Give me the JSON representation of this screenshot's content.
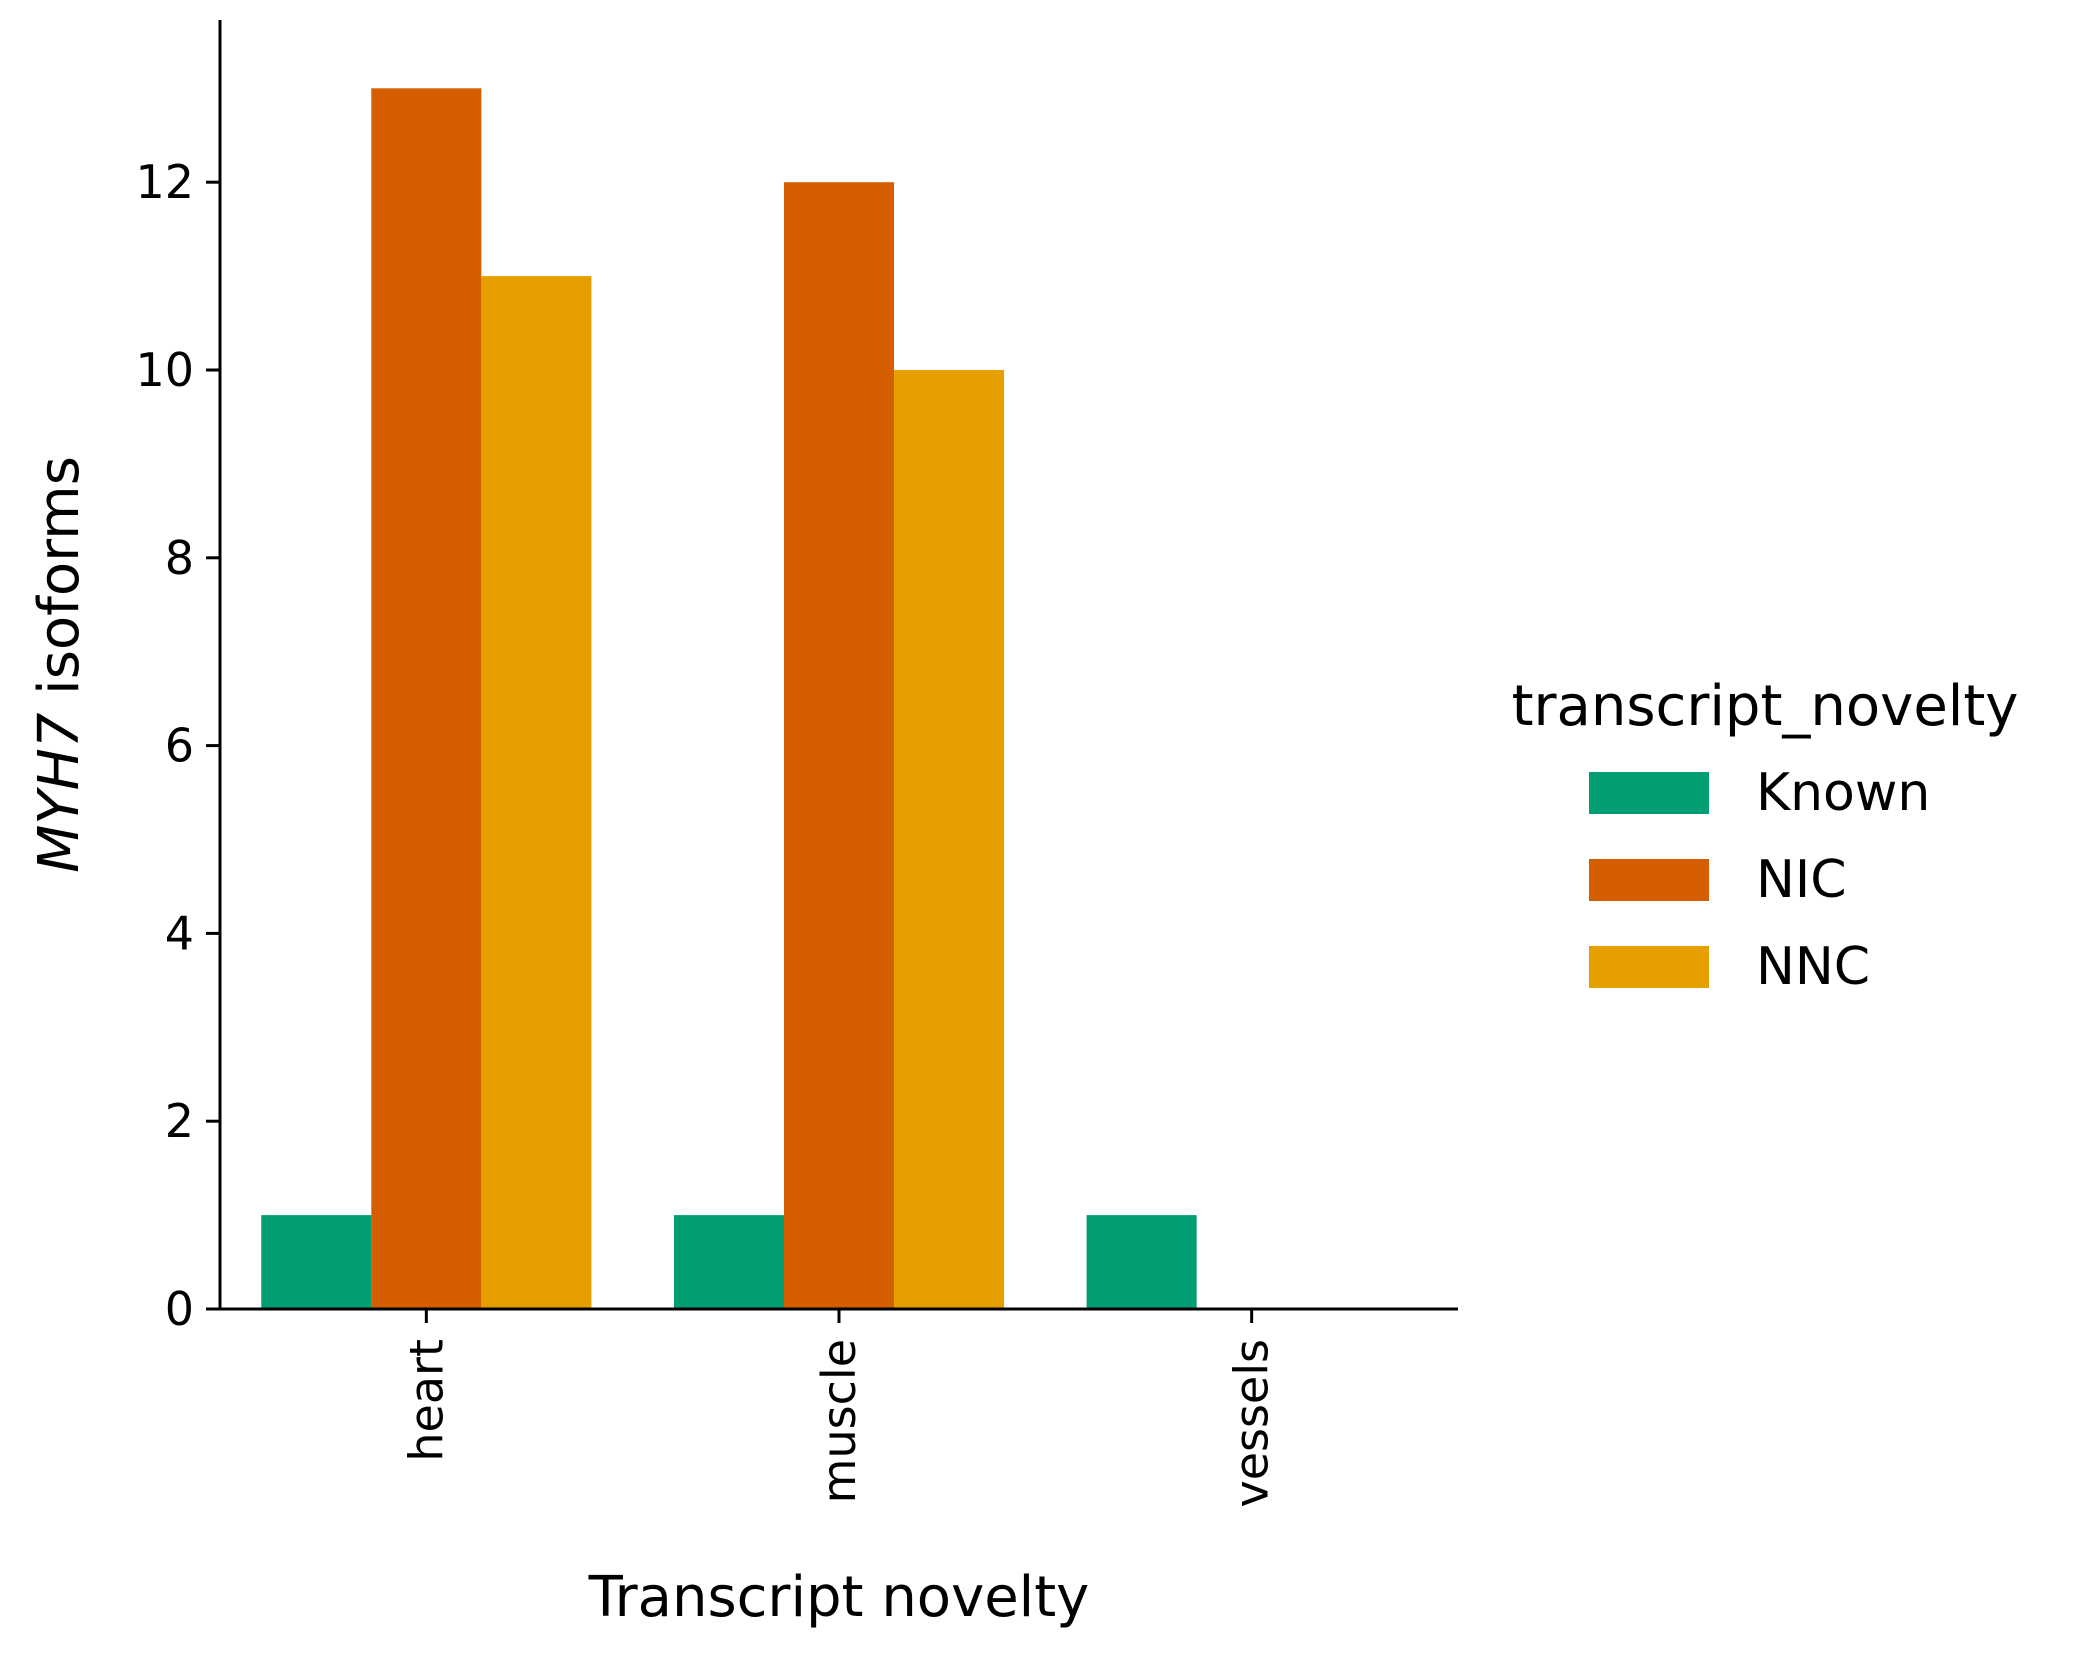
{
  "chart_data": {
    "type": "bar",
    "title": "",
    "xlabel": "Transcript novelty",
    "ylabel_italic": "MYH7",
    "ylabel_rest": " isoforms",
    "categories": [
      "heart",
      "muscle",
      "vessels"
    ],
    "series": [
      {
        "name": "Known",
        "color": "#029e73",
        "values": [
          1,
          1,
          1
        ]
      },
      {
        "name": "NIC",
        "color": "#d55e00",
        "values": [
          13,
          12,
          0
        ]
      },
      {
        "name": "NNC",
        "color": "#e5a000",
        "values": [
          11,
          10,
          0
        ]
      }
    ],
    "ylim": [
      0,
      13.7
    ],
    "yticks": [
      0,
      2,
      4,
      6,
      8,
      10,
      12
    ],
    "grid": false,
    "legend": {
      "title": "transcript_novelty",
      "placement": "right"
    }
  }
}
